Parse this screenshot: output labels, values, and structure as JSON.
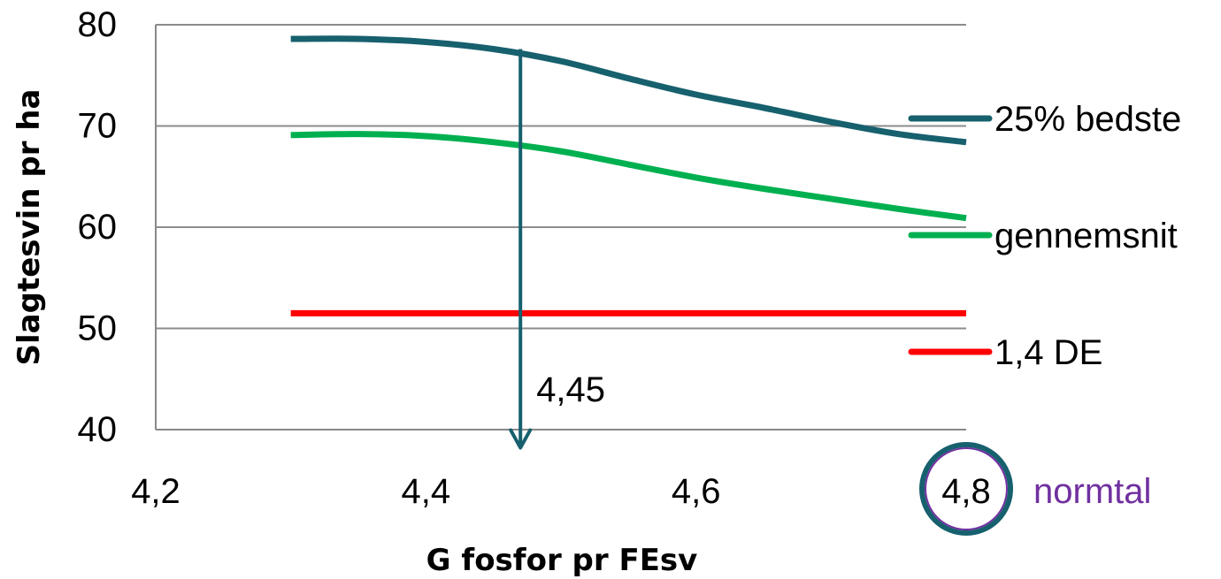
{
  "chart_data": {
    "type": "line",
    "x": [
      4.3,
      4.35,
      4.4,
      4.45,
      4.5,
      4.55,
      4.6,
      4.65,
      4.7,
      4.75,
      4.8
    ],
    "series": [
      {
        "name": "25% bedste",
        "color": "#17606E",
        "values": [
          78.6,
          78.6,
          78.3,
          77.6,
          76.4,
          74.7,
          73.1,
          71.8,
          70.4,
          69.2,
          68.4
        ]
      },
      {
        "name": "gennemsnit",
        "color": "#00B050",
        "values": [
          69.1,
          69.2,
          69.0,
          68.4,
          67.5,
          66.2,
          64.9,
          63.8,
          62.8,
          61.8,
          60.9
        ]
      },
      {
        "name": "1,4 DE",
        "color": "#FF0000",
        "values": [
          51.5,
          51.5,
          51.5,
          51.5,
          51.5,
          51.5,
          51.5,
          51.5,
          51.5,
          51.5,
          51.5
        ]
      }
    ],
    "xlim": [
      4.2,
      4.8
    ],
    "ylim": [
      40,
      80
    ],
    "xticks": [
      4.2,
      4.4,
      4.6,
      4.8
    ],
    "xtick_labels": [
      "4,2",
      "4,4",
      "4,6",
      "4,8"
    ],
    "yticks": [
      40,
      50,
      60,
      70,
      80
    ],
    "ytick_labels": [
      "40",
      "50",
      "60",
      "70",
      "80"
    ],
    "xlabel": "G fosfor pr FEsv",
    "ylabel": "Slagtesvin pr ha",
    "grid": "horizontal",
    "legend_position": "right",
    "annotations": {
      "arrow": {
        "x": 4.47,
        "from_y": 77.6,
        "to_y": 41,
        "label": "4,45",
        "color": "#17606E"
      },
      "normal_marker": {
        "x": 4.8,
        "label": "normtal",
        "circle_color": "#17606E",
        "label_color": "#7030A0"
      }
    }
  }
}
